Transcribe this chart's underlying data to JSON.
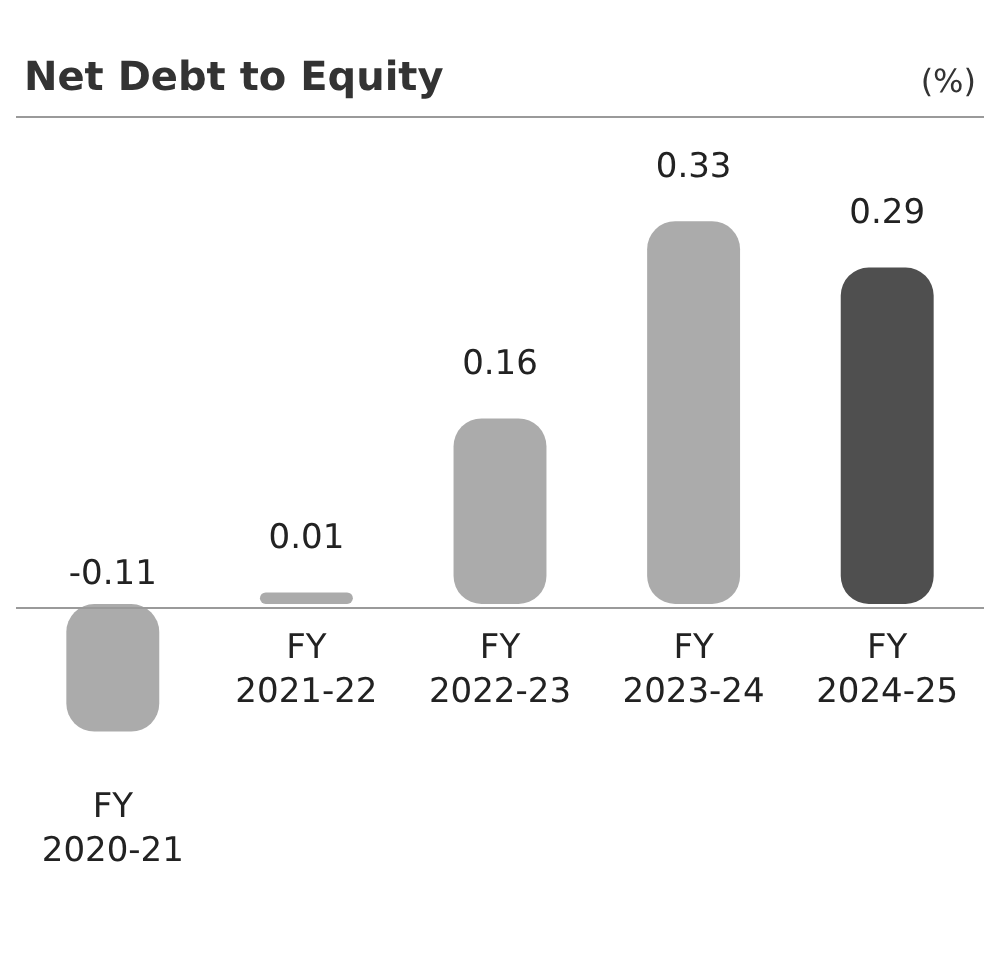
{
  "chart_data": {
    "type": "bar",
    "title": "Net Debt to Equity",
    "annotations": [
      "(%)"
    ],
    "categories": [
      "FY 2020-21",
      "FY 2021-22",
      "FY 2022-23",
      "FY 2023-24",
      "FY 2024-25"
    ],
    "values": [
      -0.11,
      0.01,
      0.16,
      0.33,
      0.29
    ],
    "colors": [
      "#ababab",
      "#ababab",
      "#ababab",
      "#ababab",
      "#4f4f4f"
    ],
    "data_labels": true
  }
}
